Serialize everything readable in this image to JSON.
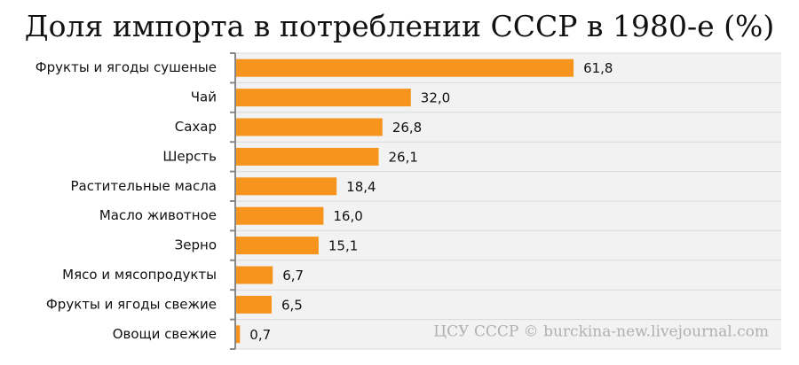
{
  "chart_data": {
    "type": "bar",
    "orientation": "horizontal",
    "title": "Доля импорта в потреблении СССР в 1980-е (%)",
    "source": "ЦСУ СССР © burckina-new.livejournal.com",
    "categories": [
      "Фрукты и ягоды сушеные",
      "Чай",
      "Сахар",
      "Шерсть",
      "Растительные масла",
      "Масло животное",
      "Зерно",
      "Мясо и мясопродукты",
      "Фрукты и ягоды свежие",
      "Овощи свежие"
    ],
    "values": [
      61.8,
      32.0,
      26.8,
      26.1,
      18.4,
      16.0,
      15.1,
      6.7,
      6.5,
      0.7
    ],
    "value_labels": [
      "61,8",
      "32,0",
      "26,8",
      "26,1",
      "18,4",
      "16,0",
      "15,1",
      "6,7",
      "6,5",
      "0,7"
    ],
    "color": "#f7941d",
    "xlim": [
      0,
      100
    ]
  }
}
